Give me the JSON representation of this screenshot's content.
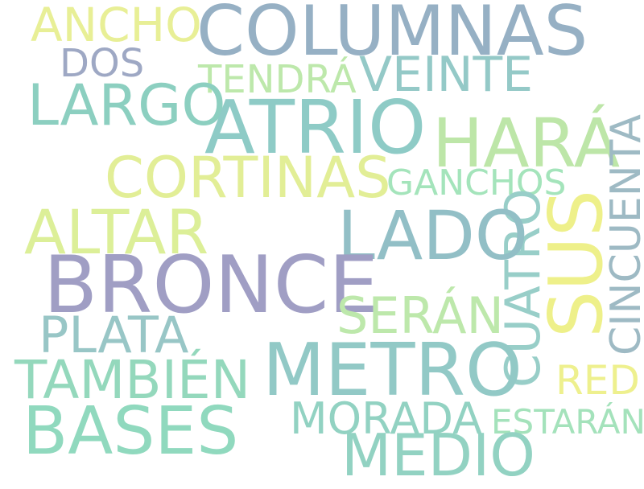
{
  "words": {
    "columnas": {
      "text": "COLUMNAS",
      "color": "#96b0c4"
    },
    "ancho": {
      "text": "ANCHO",
      "color": "#e8ef96"
    },
    "dos": {
      "text": "DOS",
      "color": "#9ea8c4"
    },
    "tendra": {
      "text": "TENDRÁ",
      "color": "#bde8ab"
    },
    "veinte": {
      "text": "VEINTE",
      "color": "#94c9c7"
    },
    "largo": {
      "text": "LARGO",
      "color": "#8ccfc0"
    },
    "atrio": {
      "text": "ATRIO",
      "color": "#8ecbc6"
    },
    "hara": {
      "text": "HARÁ",
      "color": "#bde6a8"
    },
    "cincuenta": {
      "text": "CINCUENTA",
      "color": "#9ebac4"
    },
    "cortinas": {
      "text": "CORTINAS",
      "color": "#e2ee96"
    },
    "ganchos": {
      "text": "GANCHOS",
      "color": "#a4e4bb"
    },
    "sus": {
      "text": "SUS",
      "color": "#eef08a"
    },
    "cuatro": {
      "text": "CUATRO",
      "color": "#98cec8"
    },
    "altar": {
      "text": "ALTAR",
      "color": "#dcef98"
    },
    "lado": {
      "text": "LADO",
      "color": "#92bfc6"
    },
    "bronce": {
      "text": "BRONCE",
      "color": "#a09ec4"
    },
    "seran": {
      "text": "SERÁN",
      "color": "#bde8ab"
    },
    "plata": {
      "text": "PLATA",
      "color": "#98c6c6"
    },
    "metro": {
      "text": "METRO",
      "color": "#92c9c6"
    },
    "tambien": {
      "text": "TAMBIÉN",
      "color": "#94d8bc"
    },
    "red": {
      "text": "RED",
      "color": "#eef08e"
    },
    "bases": {
      "text": "BASES",
      "color": "#90d9be"
    },
    "morada": {
      "text": "MORADA",
      "color": "#92d2c2"
    },
    "estaran": {
      "text": "ESTARÁN",
      "color": "#a4e2bb"
    },
    "medio": {
      "text": "MEDIO",
      "color": "#92d2c2"
    }
  }
}
